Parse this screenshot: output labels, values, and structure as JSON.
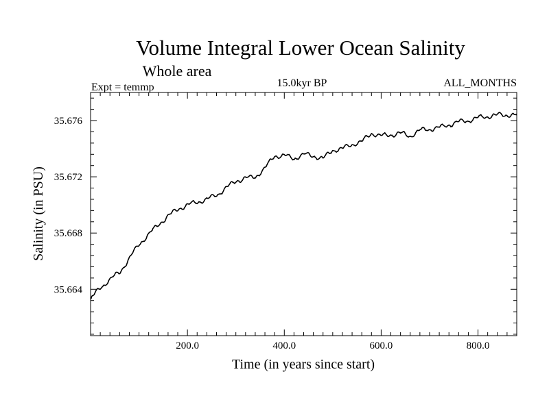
{
  "chart_data": {
    "type": "line",
    "title": "Volume Integral Lower Ocean Salinity",
    "subtitle": "Whole area",
    "experiment": "Expt = temmp",
    "period": "15.0kyr BP",
    "months": "ALL_MONTHS",
    "xlabel": "Time (in years since start)",
    "ylabel": "Salinity (in PSU)",
    "xlim": [
      0,
      880
    ],
    "ylim": [
      35.6607,
      35.678
    ],
    "xticks_major": [
      200,
      400,
      600,
      800
    ],
    "xtick_labels": [
      "200.0",
      "400.0",
      "600.0",
      "800.0"
    ],
    "xtick_minor_step": 20,
    "yticks_major": [
      35.664,
      35.668,
      35.672,
      35.676
    ],
    "ytick_labels": [
      "35.664",
      "35.668",
      "35.672",
      "35.676"
    ],
    "ytick_minor_step": 0.0008,
    "series": [
      {
        "name": "Salinity",
        "color": "#000000",
        "x": [
          0,
          20,
          40,
          60,
          80,
          100,
          120,
          140,
          160,
          180,
          200,
          220,
          240,
          260,
          280,
          300,
          320,
          340,
          360,
          380,
          400,
          420,
          440,
          460,
          480,
          500,
          520,
          540,
          560,
          580,
          600,
          620,
          640,
          660,
          680,
          700,
          720,
          740,
          760,
          780,
          800,
          820,
          840,
          860,
          880
        ],
        "values": [
          35.6633,
          35.6641,
          35.6647,
          35.6652,
          35.6662,
          35.6672,
          35.6679,
          35.6686,
          35.6692,
          35.6697,
          35.67,
          35.6702,
          35.6704,
          35.6707,
          35.6712,
          35.6717,
          35.6719,
          35.672,
          35.6726,
          35.6735,
          35.6735,
          35.6733,
          35.6736,
          35.6735,
          35.6733,
          35.6739,
          35.674,
          35.6743,
          35.6745,
          35.6751,
          35.6749,
          35.675,
          35.6751,
          35.6749,
          35.6753,
          35.6754,
          35.6755,
          35.6757,
          35.6759,
          35.676,
          35.6762,
          35.6763,
          35.6764,
          35.6764,
          35.6764
        ]
      }
    ]
  }
}
